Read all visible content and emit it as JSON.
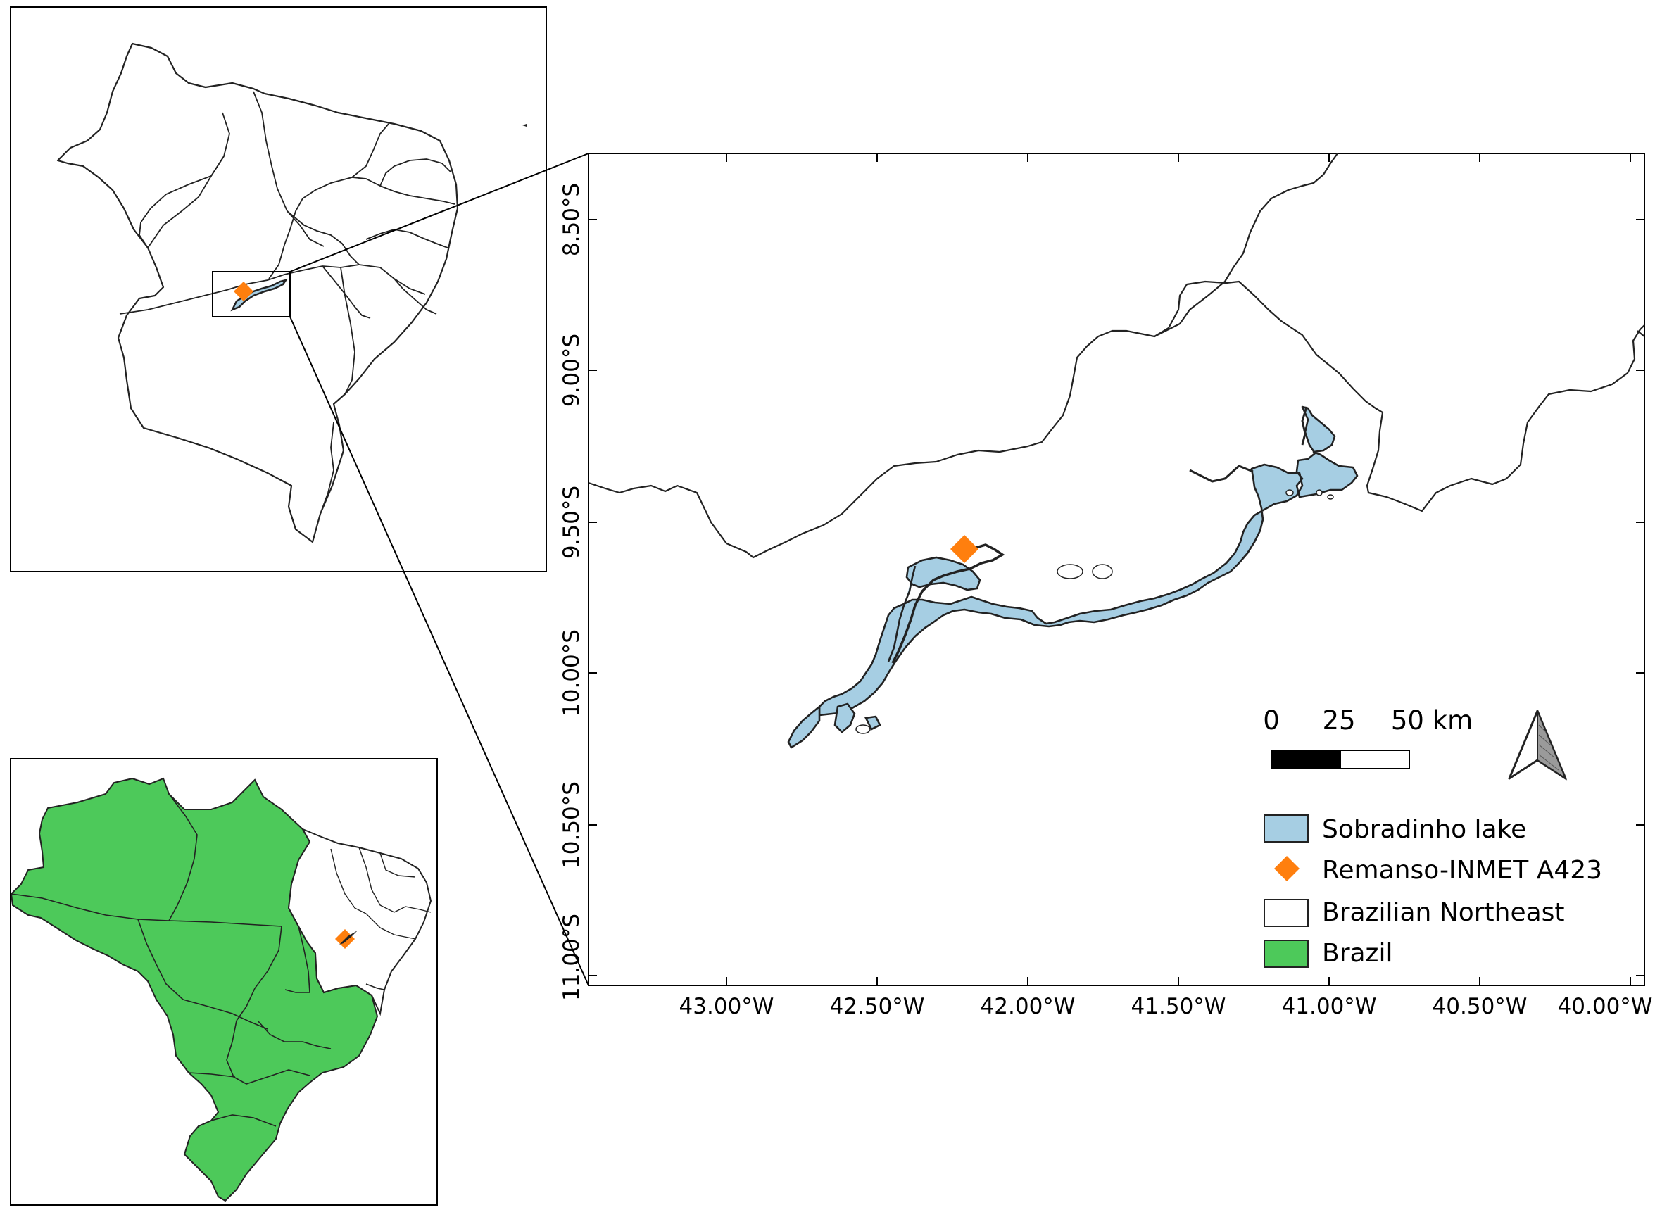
{
  "main_map": {
    "lat_ticks": [
      "8.50°S",
      "9.00°S",
      "9.50°S",
      "10.00°S",
      "10.50°S",
      "11.00°S"
    ],
    "lon_ticks": [
      "43.00°W",
      "42.50°W",
      "42.00°W",
      "41.50°W",
      "41.00°W",
      "40.50°W",
      "40.00°W"
    ],
    "scale_bar": {
      "labels": [
        "0",
        "25",
        "50 km"
      ],
      "values_km": [
        0,
        25,
        50
      ]
    },
    "north_arrow": "north-arrow-icon",
    "station": {
      "name": "Remanso-INMET A423"
    }
  },
  "legend": {
    "items": [
      {
        "label": "Sobradinho lake",
        "symbol": "lake-swatch",
        "color": "#a6cee3"
      },
      {
        "label": "Remanso-INMET A423",
        "symbol": "diamond-marker",
        "color": "#ff7f0e"
      },
      {
        "label": "Brazilian Northeast",
        "symbol": "white-swatch",
        "color": "#ffffff"
      },
      {
        "label": "Brazil",
        "symbol": "green-swatch",
        "color": "#4dc95a"
      }
    ]
  },
  "colors": {
    "lake": "#a6cee3",
    "station": "#ff7f0e",
    "brazil": "#4dc95a",
    "northeast": "#ffffff",
    "outline": "#222222"
  }
}
